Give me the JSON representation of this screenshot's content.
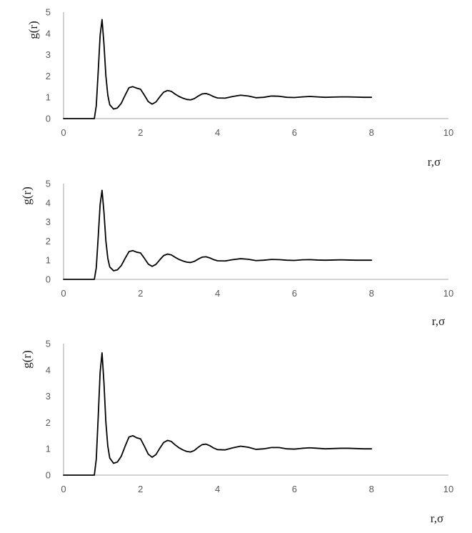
{
  "chart_data": [
    {
      "type": "line",
      "title": "",
      "xlabel": "r,σ",
      "ylabel": "g(r)",
      "xlim": [
        0,
        10
      ],
      "ylim": [
        0,
        5
      ],
      "x_ticks": [
        0,
        2,
        4,
        6,
        8,
        10
      ],
      "y_ticks": [
        0,
        1,
        2,
        3,
        4,
        5
      ],
      "grid": false,
      "legend": "none",
      "line_color": "#000000",
      "series": [
        {
          "x": [
            0,
            0.8,
            0.85,
            0.9,
            0.95,
            1.0,
            1.05,
            1.1,
            1.15,
            1.2,
            1.3,
            1.4,
            1.5,
            1.6,
            1.7,
            1.8,
            1.9,
            2.0,
            2.1,
            2.2,
            2.3,
            2.4,
            2.5,
            2.6,
            2.7,
            2.8,
            2.9,
            3.0,
            3.1,
            3.2,
            3.3,
            3.4,
            3.5,
            3.6,
            3.7,
            3.8,
            3.9,
            4.0,
            4.2,
            4.4,
            4.6,
            4.8,
            5.0,
            5.2,
            5.4,
            5.6,
            5.8,
            6.0,
            6.2,
            6.4,
            6.6,
            6.8,
            7.0,
            7.2,
            7.4,
            7.6,
            7.8,
            8.0
          ],
          "y": [
            0,
            0,
            0.6,
            2.2,
            3.9,
            4.65,
            3.5,
            2.0,
            1.1,
            0.65,
            0.45,
            0.5,
            0.72,
            1.1,
            1.45,
            1.5,
            1.43,
            1.38,
            1.1,
            0.8,
            0.68,
            0.78,
            1.02,
            1.24,
            1.32,
            1.28,
            1.15,
            1.04,
            0.96,
            0.9,
            0.88,
            0.94,
            1.06,
            1.16,
            1.18,
            1.12,
            1.03,
            0.97,
            0.96,
            1.04,
            1.1,
            1.06,
            0.98,
            1.0,
            1.06,
            1.05,
            1.0,
            0.99,
            1.02,
            1.04,
            1.02,
            1.0,
            1.01,
            1.02,
            1.02,
            1.01,
            1.0,
            1.0
          ]
        }
      ]
    },
    {
      "type": "line",
      "title": "",
      "xlabel": "r,σ",
      "ylabel": "g(r)",
      "xlim": [
        0,
        10
      ],
      "ylim": [
        0,
        5
      ],
      "x_ticks": [
        0,
        2,
        4,
        6,
        8,
        10
      ],
      "y_ticks": [
        0,
        1,
        2,
        3,
        4,
        5
      ],
      "grid": false,
      "legend": "none",
      "line_color": "#000000",
      "series": [
        {
          "x": [
            0,
            0.8,
            0.85,
            0.9,
            0.95,
            1.0,
            1.05,
            1.1,
            1.15,
            1.2,
            1.3,
            1.4,
            1.5,
            1.6,
            1.7,
            1.8,
            1.9,
            2.0,
            2.1,
            2.2,
            2.3,
            2.4,
            2.5,
            2.6,
            2.7,
            2.8,
            2.9,
            3.0,
            3.1,
            3.2,
            3.3,
            3.4,
            3.5,
            3.6,
            3.7,
            3.8,
            3.9,
            4.0,
            4.2,
            4.4,
            4.6,
            4.8,
            5.0,
            5.2,
            5.4,
            5.6,
            5.8,
            6.0,
            6.2,
            6.4,
            6.6,
            6.8,
            7.0,
            7.2,
            7.4,
            7.6,
            7.8,
            8.0
          ],
          "y": [
            0,
            0,
            0.6,
            2.2,
            3.9,
            4.65,
            3.5,
            2.0,
            1.1,
            0.65,
            0.45,
            0.5,
            0.72,
            1.1,
            1.45,
            1.5,
            1.42,
            1.38,
            1.1,
            0.8,
            0.68,
            0.78,
            1.02,
            1.24,
            1.32,
            1.28,
            1.15,
            1.04,
            0.96,
            0.9,
            0.88,
            0.94,
            1.06,
            1.16,
            1.18,
            1.12,
            1.03,
            0.97,
            0.96,
            1.03,
            1.08,
            1.05,
            0.98,
            1.0,
            1.04,
            1.03,
            1.0,
            0.99,
            1.02,
            1.03,
            1.01,
            1.0,
            1.01,
            1.02,
            1.01,
            1.0,
            1.0,
            1.0
          ]
        }
      ]
    },
    {
      "type": "line",
      "title": "",
      "xlabel": "r,σ",
      "ylabel": "g(r)",
      "xlim": [
        0,
        10
      ],
      "ylim": [
        0,
        5
      ],
      "x_ticks": [
        0,
        2,
        4,
        6,
        8,
        10
      ],
      "y_ticks": [
        0,
        1,
        2,
        3,
        4,
        5
      ],
      "grid": false,
      "legend": "none",
      "line_color": "#000000",
      "series": [
        {
          "x": [
            0,
            0.8,
            0.85,
            0.9,
            0.95,
            1.0,
            1.05,
            1.1,
            1.15,
            1.2,
            1.3,
            1.4,
            1.5,
            1.6,
            1.7,
            1.8,
            1.9,
            2.0,
            2.1,
            2.2,
            2.3,
            2.4,
            2.5,
            2.6,
            2.7,
            2.8,
            2.9,
            3.0,
            3.1,
            3.2,
            3.3,
            3.4,
            3.5,
            3.6,
            3.7,
            3.8,
            3.9,
            4.0,
            4.2,
            4.4,
            4.6,
            4.8,
            5.0,
            5.2,
            5.4,
            5.6,
            5.8,
            6.0,
            6.2,
            6.4,
            6.6,
            6.8,
            7.0,
            7.2,
            7.4,
            7.6,
            7.8,
            8.0
          ],
          "y": [
            0,
            0,
            0.6,
            2.2,
            3.9,
            4.65,
            3.5,
            2.0,
            1.1,
            0.65,
            0.45,
            0.5,
            0.72,
            1.1,
            1.45,
            1.5,
            1.42,
            1.38,
            1.1,
            0.8,
            0.68,
            0.78,
            1.02,
            1.24,
            1.32,
            1.28,
            1.15,
            1.04,
            0.96,
            0.9,
            0.88,
            0.94,
            1.06,
            1.16,
            1.18,
            1.12,
            1.03,
            0.97,
            0.96,
            1.04,
            1.1,
            1.06,
            0.98,
            1.0,
            1.05,
            1.05,
            1.0,
            0.99,
            1.02,
            1.04,
            1.02,
            1.0,
            1.01,
            1.02,
            1.02,
            1.01,
            1.0,
            1.0
          ]
        }
      ]
    }
  ]
}
